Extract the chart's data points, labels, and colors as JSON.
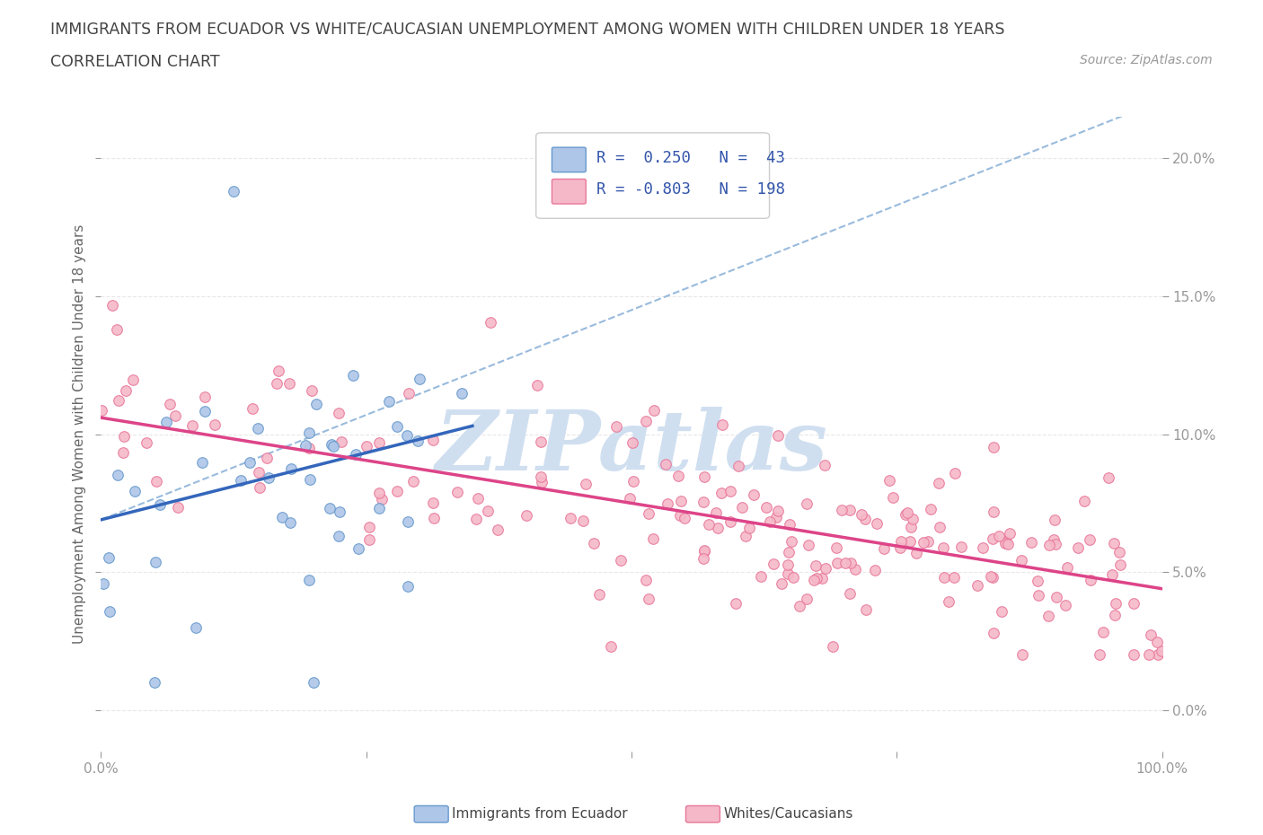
{
  "title": "IMMIGRANTS FROM ECUADOR VS WHITE/CAUCASIAN UNEMPLOYMENT AMONG WOMEN WITH CHILDREN UNDER 18 YEARS",
  "subtitle": "CORRELATION CHART",
  "source": "Source: ZipAtlas.com",
  "ylabel": "Unemployment Among Women with Children Under 18 years",
  "xlim": [
    0.0,
    1.0
  ],
  "ylim": [
    -0.015,
    0.215
  ],
  "yticks": [
    0.0,
    0.05,
    0.1,
    0.15,
    0.2
  ],
  "ytick_labels": [
    "0.0%",
    "5.0%",
    "10.0%",
    "15.0%",
    "20.0%"
  ],
  "xticks": [
    0.0,
    0.25,
    0.5,
    0.75,
    1.0
  ],
  "xtick_labels": [
    "0.0%",
    "",
    "",
    "",
    "100.0%"
  ],
  "blue_fill": "#aec6e8",
  "blue_edge": "#6699cc",
  "pink_fill": "#f5b8c8",
  "pink_edge": "#e8789a",
  "blue_line_color": "#3366bb",
  "blue_dash_color": "#99bbdd",
  "pink_line_color": "#dd4488",
  "watermark_color": "#d0dff0",
  "background_color": "#ffffff",
  "grid_color": "#e8e8e8",
  "tick_color": "#999999",
  "label_color": "#666666",
  "title_color": "#444444",
  "source_color": "#999999",
  "legend_text_color": "#3355aa",
  "seed": 12345,
  "ecuador_n": 43,
  "white_n": 198,
  "ecuador_r": 0.25,
  "white_r": -0.803,
  "ec_trendline": [
    0.0,
    0.35,
    0.069,
    0.103
  ],
  "ec_dashline": [
    0.0,
    1.0,
    0.069,
    0.221
  ],
  "wh_trendline": [
    0.0,
    1.0,
    0.106,
    0.044
  ]
}
